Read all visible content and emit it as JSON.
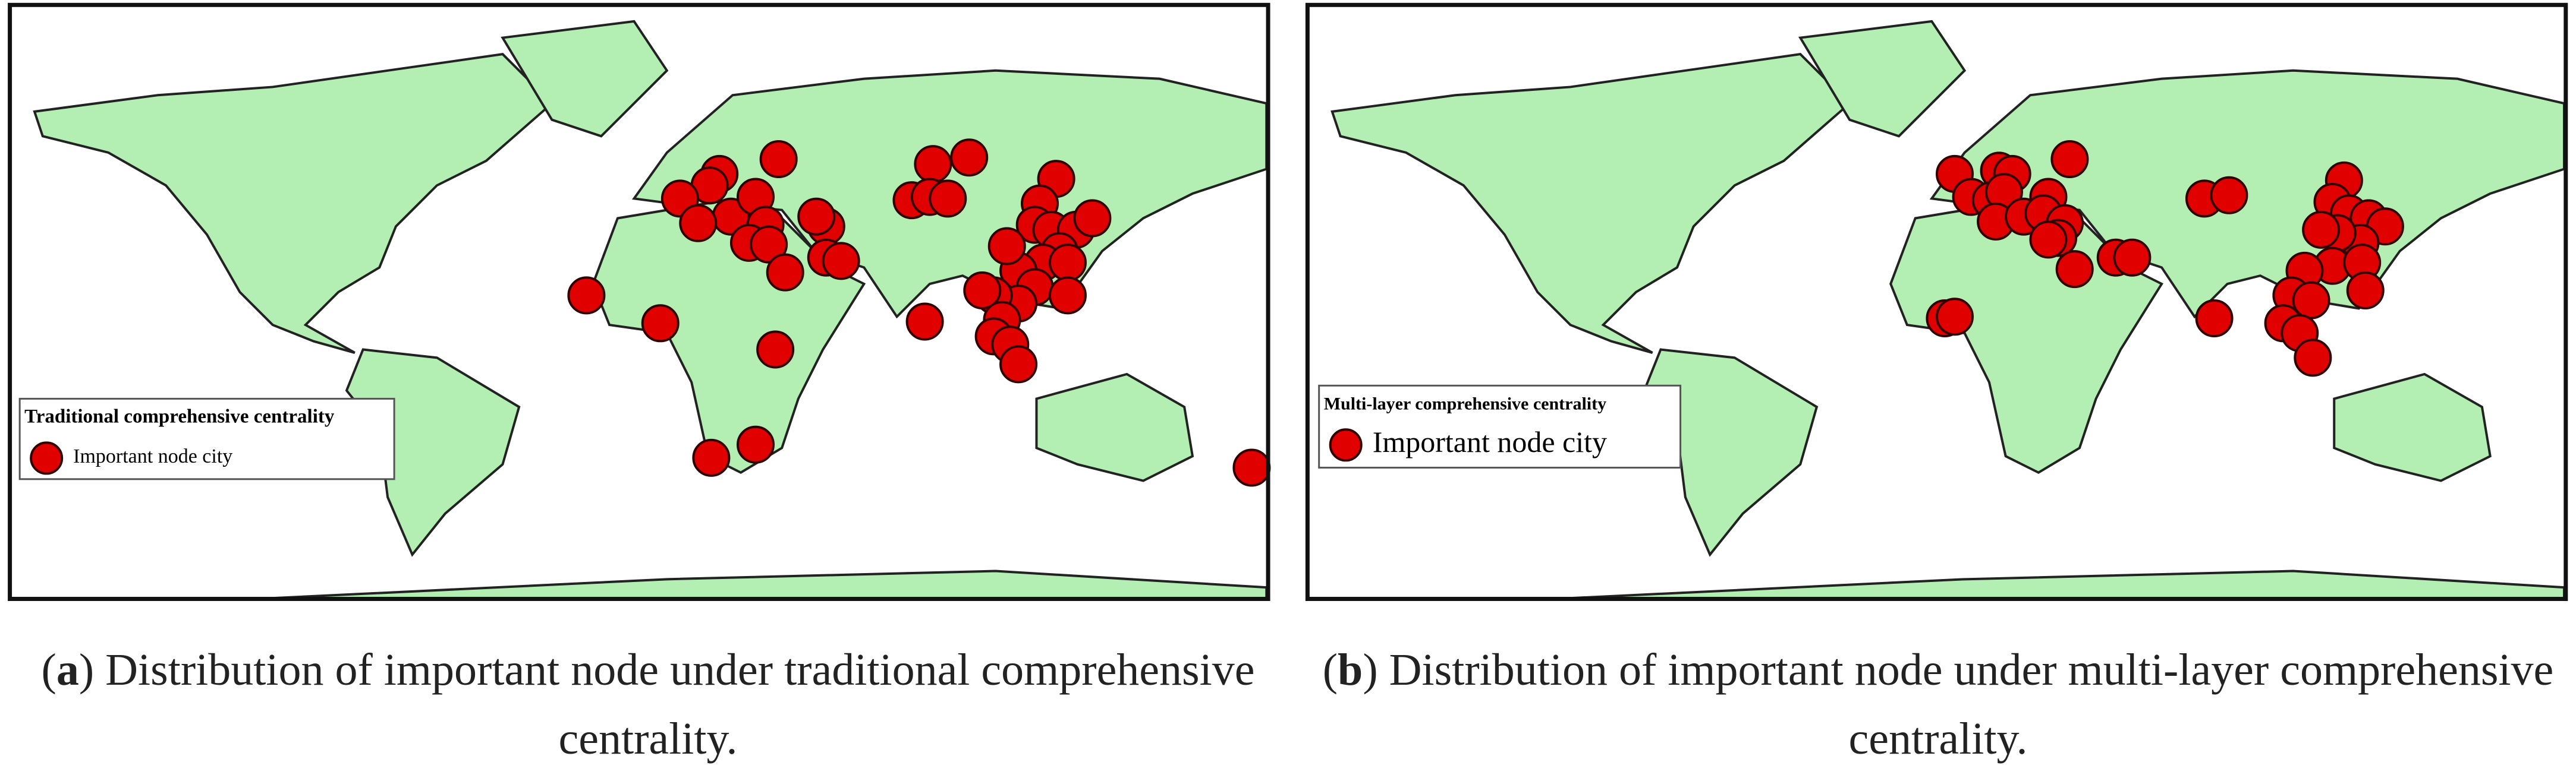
{
  "maps": [
    {
      "legend": {
        "title": "Traditional comprehensive centrality",
        "label": "Important node city"
      },
      "caption": {
        "open": "(",
        "label": "a",
        "text": ") Distribution of important node under traditional comprehensive centrality."
      }
    },
    {
      "legend": {
        "title": "Multi-layer comprehensive centrality",
        "label": "Important node city"
      },
      "caption": {
        "open": "(",
        "label": "b",
        "text": ") Distribution of important node under multi-layer comprehensive centrality."
      }
    }
  ]
}
